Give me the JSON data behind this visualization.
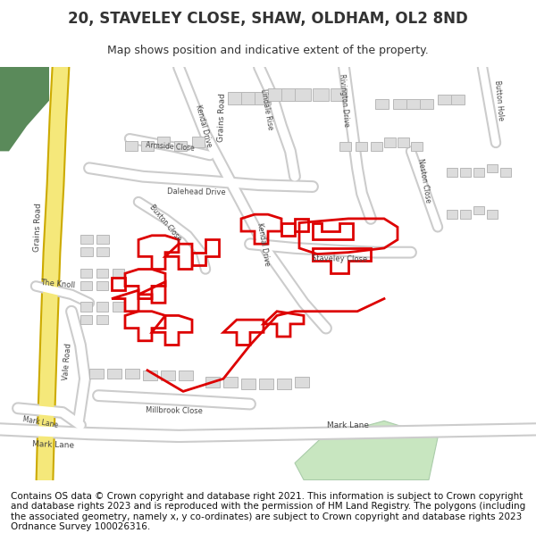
{
  "title": "20, STAVELEY CLOSE, SHAW, OLDHAM, OL2 8ND",
  "subtitle": "Map shows position and indicative extent of the property.",
  "footer": "Contains OS data © Crown copyright and database right 2021. This information is subject to Crown copyright and database rights 2023 and is reproduced with the permission of HM Land Registry. The polygons (including the associated geometry, namely x, y co-ordinates) are subject to Crown copyright and database rights 2023 Ordnance Survey 100026316.",
  "bg_color": "#f5f5f2",
  "road_color": "#ffffff",
  "road_outline_color": "#cccccc",
  "building_color": "#e0e0e0",
  "building_outline_color": "#b0b0b0",
  "green_color": "#c8e6c0",
  "dark_green_color": "#5a8a5a",
  "yellow_road_color": "#f5e87a",
  "red_outline_color": "#dd0000",
  "text_color": "#333333",
  "title_fontsize": 12,
  "subtitle_fontsize": 9,
  "footer_fontsize": 7.5,
  "map_bg": "#f0eeeb"
}
